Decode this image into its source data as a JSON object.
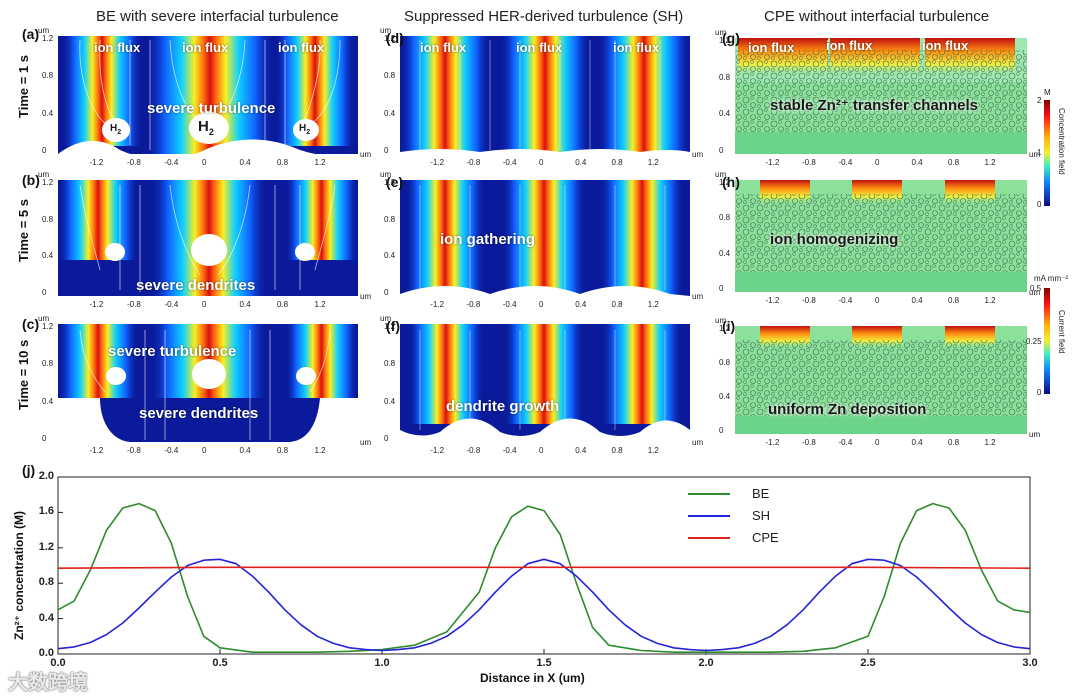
{
  "columns": {
    "be": "BE with severe interfacial turbulence",
    "sh": "Suppressed HER-derived turbulence (SH)",
    "cpe": "CPE without interfacial turbulence"
  },
  "rows": {
    "t1": "Time = 1 s",
    "t5": "Time = 5 s",
    "t10": "Time = 10 s"
  },
  "letters": {
    "a": "(a)",
    "b": "(b)",
    "c": "(c)",
    "d": "(d)",
    "e": "(e)",
    "f": "(f)",
    "g": "(g)",
    "h": "(h)",
    "i": "(i)",
    "j": "(j)"
  },
  "axis_unit": "um",
  "panel_xticks": [
    "-1.2",
    "-0.8",
    "-0.4",
    "0",
    "0.4",
    "0.8",
    "1.2"
  ],
  "panel_yticks": [
    "1.2",
    "0.8",
    "0.4",
    "0"
  ],
  "annotations": {
    "ion_flux": "ion flux",
    "h2": "H",
    "h2_sub": "2",
    "severe_turbulence": "severe turbulence",
    "severe_dendrites": "severe dendrites",
    "ion_gathering": "ion gathering",
    "dendrite_growth": "dendrite growth",
    "stable_channels": "stable Zn²⁺ transfer channels",
    "ion_homogenizing": "ion homogenizing",
    "uniform_deposition": "uniform Zn deposition"
  },
  "colorbars": {
    "concentration": {
      "unit": "M",
      "title": "Concentration field",
      "ticks": [
        "2",
        "1",
        "0"
      ]
    },
    "current": {
      "unit": "mA mm⁻²",
      "title": "Current field",
      "ticks": [
        "0.5",
        "0.25",
        "0"
      ]
    }
  },
  "chart_data": {
    "type": "line",
    "title": "",
    "xlabel": "Distance in X (um)",
    "ylabel": "Zn²⁺ concentration (M)",
    "xlim": [
      0.0,
      3.0
    ],
    "ylim": [
      0.0,
      2.0
    ],
    "xticks": [
      "0.0",
      "0.5",
      "1.0",
      "1.5",
      "2.0",
      "2.5",
      "3.0"
    ],
    "yticks": [
      "0.0",
      "0.4",
      "0.8",
      "1.2",
      "1.6",
      "2.0"
    ],
    "series": [
      {
        "name": "BE",
        "color": "#2e8b2e",
        "x": [
          0.0,
          0.05,
          0.1,
          0.15,
          0.2,
          0.25,
          0.3,
          0.35,
          0.4,
          0.45,
          0.5,
          0.6,
          0.7,
          0.8,
          0.9,
          1.0,
          1.1,
          1.2,
          1.3,
          1.35,
          1.4,
          1.45,
          1.5,
          1.55,
          1.6,
          1.65,
          1.7,
          1.8,
          1.9,
          2.0,
          2.1,
          2.2,
          2.3,
          2.4,
          2.5,
          2.55,
          2.6,
          2.65,
          2.7,
          2.75,
          2.8,
          2.85,
          2.9,
          2.95,
          3.0
        ],
        "y": [
          0.5,
          0.6,
          0.95,
          1.4,
          1.65,
          1.7,
          1.62,
          1.25,
          0.65,
          0.2,
          0.07,
          0.02,
          0.02,
          0.02,
          0.03,
          0.05,
          0.1,
          0.25,
          0.7,
          1.2,
          1.55,
          1.67,
          1.62,
          1.35,
          0.8,
          0.3,
          0.1,
          0.04,
          0.02,
          0.02,
          0.02,
          0.02,
          0.03,
          0.07,
          0.2,
          0.65,
          1.25,
          1.62,
          1.7,
          1.65,
          1.4,
          0.95,
          0.6,
          0.5,
          0.47
        ]
      },
      {
        "name": "SH",
        "color": "#2424d8",
        "x": [
          0.0,
          0.05,
          0.1,
          0.15,
          0.2,
          0.25,
          0.3,
          0.35,
          0.4,
          0.45,
          0.5,
          0.55,
          0.6,
          0.65,
          0.7,
          0.75,
          0.8,
          0.85,
          0.9,
          0.95,
          1.0,
          1.05,
          1.1,
          1.15,
          1.2,
          1.25,
          1.3,
          1.35,
          1.4,
          1.45,
          1.5,
          1.55,
          1.6,
          1.65,
          1.7,
          1.75,
          1.8,
          1.85,
          1.9,
          1.95,
          2.0,
          2.05,
          2.1,
          2.15,
          2.2,
          2.25,
          2.3,
          2.35,
          2.4,
          2.45,
          2.5,
          2.55,
          2.6,
          2.65,
          2.7,
          2.75,
          2.8,
          2.85,
          2.9,
          2.95,
          3.0
        ],
        "y": [
          0.06,
          0.08,
          0.13,
          0.22,
          0.35,
          0.52,
          0.7,
          0.87,
          1.0,
          1.06,
          1.07,
          1.02,
          0.88,
          0.7,
          0.5,
          0.33,
          0.2,
          0.12,
          0.07,
          0.05,
          0.04,
          0.05,
          0.07,
          0.12,
          0.2,
          0.33,
          0.5,
          0.7,
          0.88,
          1.02,
          1.07,
          1.02,
          0.88,
          0.7,
          0.5,
          0.33,
          0.2,
          0.12,
          0.07,
          0.05,
          0.04,
          0.05,
          0.07,
          0.12,
          0.2,
          0.33,
          0.5,
          0.7,
          0.88,
          1.02,
          1.07,
          1.06,
          1.0,
          0.87,
          0.7,
          0.52,
          0.35,
          0.22,
          0.13,
          0.08,
          0.06
        ]
      },
      {
        "name": "CPE",
        "color": "#e0201a",
        "x": [
          0.0,
          0.5,
          1.0,
          1.5,
          2.0,
          2.5,
          3.0
        ],
        "y": [
          0.97,
          0.98,
          0.98,
          0.98,
          0.98,
          0.98,
          0.97
        ]
      }
    ]
  },
  "watermark": "大数跨境"
}
